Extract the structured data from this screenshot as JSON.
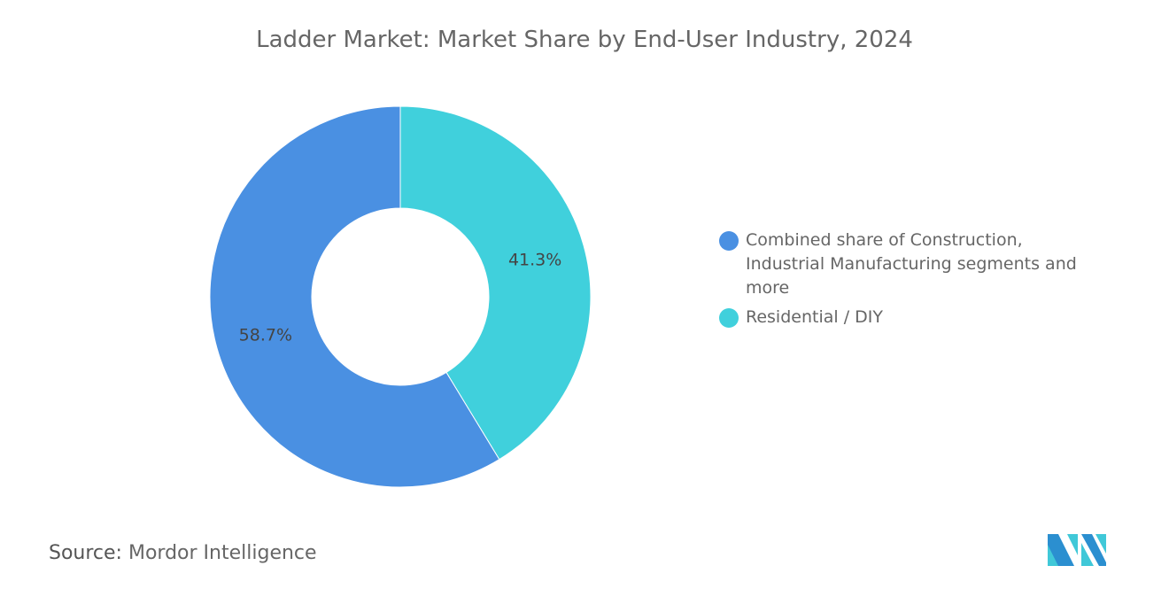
{
  "chart_data": {
    "type": "pie",
    "variant": "donut",
    "title": "Ladder Market: Market Share by End-User Industry, 2024",
    "slices": [
      {
        "label": "Residential / DIY",
        "value": 41.3,
        "display": "41.3%",
        "color": "#40d0dc"
      },
      {
        "label": "Combined share of Construction, Industrial Manufacturing segments and more",
        "value": 58.7,
        "display": "58.7%",
        "color": "#4a90e2"
      }
    ],
    "legend_order": [
      1,
      0
    ],
    "legend_position": "right"
  },
  "source": {
    "label": "Source:",
    "text": "Mordor Intelligence"
  },
  "logo": {
    "text": "Mordor Intelligence"
  }
}
